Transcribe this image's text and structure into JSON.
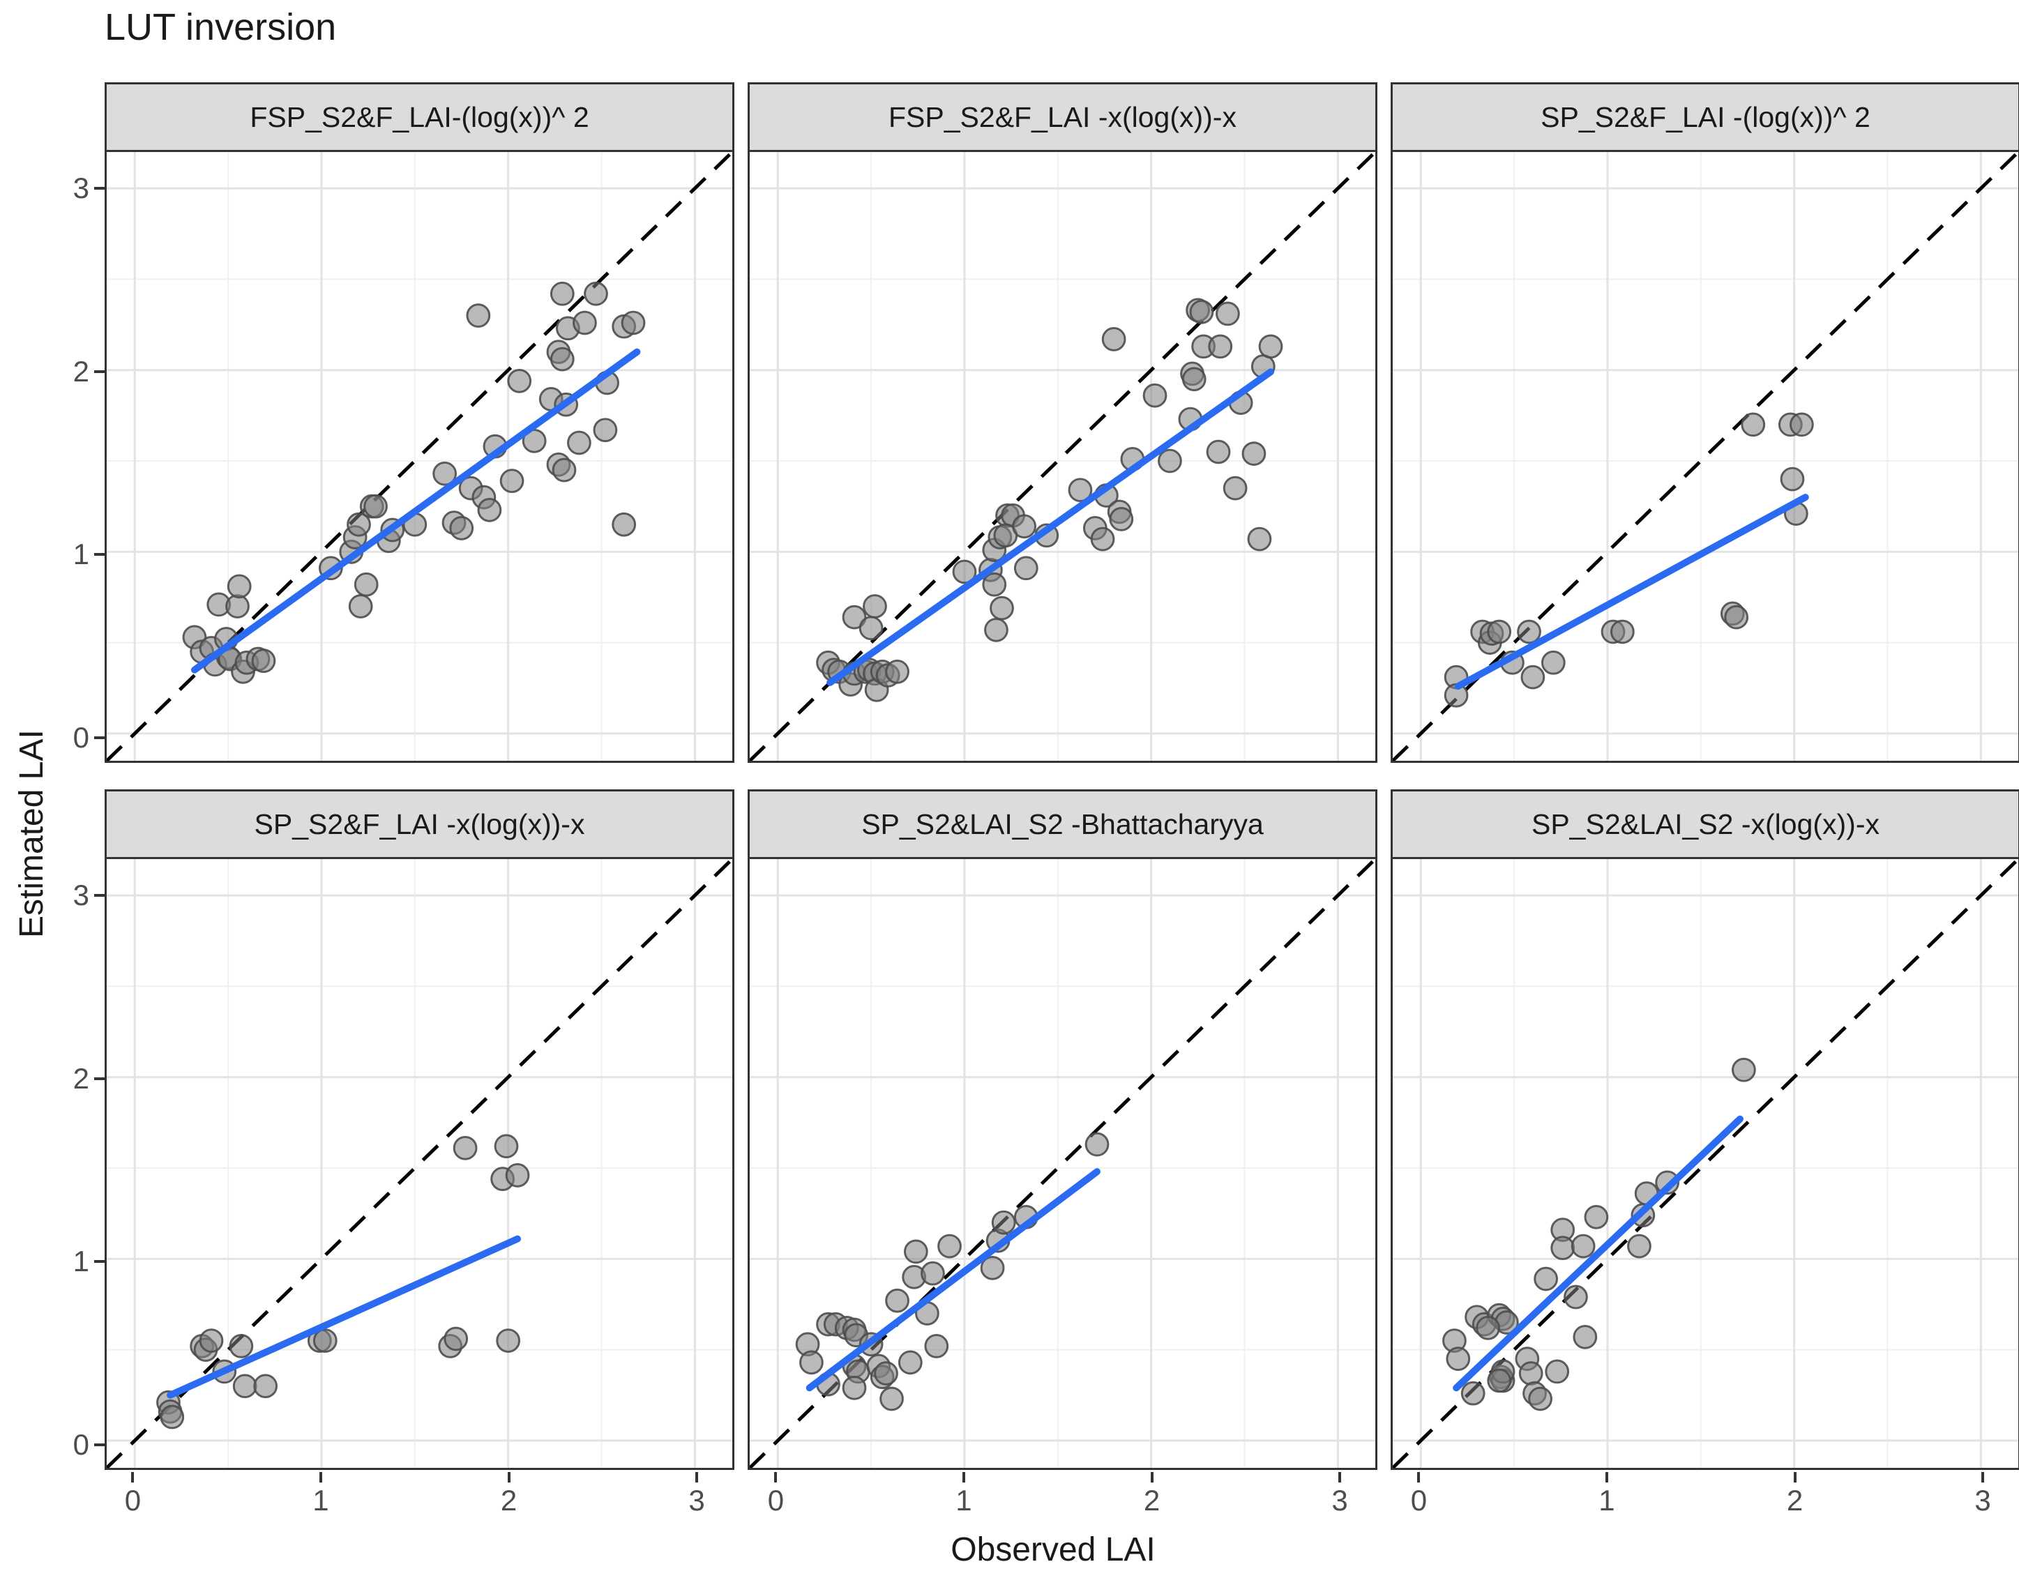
{
  "page": {
    "title": "LUT inversion"
  },
  "axes": {
    "x_title": "Observed LAI",
    "y_title": "Estimated LAI",
    "tick_labels": [
      "0",
      "1",
      "2",
      "3"
    ],
    "tick_values": [
      0,
      1,
      2,
      3
    ],
    "range": [
      -0.15,
      3.2
    ]
  },
  "style": {
    "fit_line_color": "#2a6bf2",
    "identity_line_color": "#000000",
    "point_fill": "#828282",
    "point_stroke": "#4d4d4d",
    "point_opacity": 0.55,
    "grid_major_color": "#e3e3e3",
    "grid_minor_color": "#f0f0f0",
    "strip_bg": "#dcdcdc",
    "panel_border": "#333333",
    "tick_label_color": "#4d4d4d"
  },
  "chart_data": [
    {
      "type": "scatter",
      "title": "FSP_S2&F_LAI-(log(x))^ 2",
      "xlabel": "Observed LAI",
      "ylabel": "Estimated LAI",
      "xlim": [
        -0.15,
        3.2
      ],
      "ylim": [
        -0.15,
        3.2
      ],
      "identity_line": true,
      "fit_line": {
        "x1": 0.32,
        "y1": 0.35,
        "x2": 2.69,
        "y2": 2.1
      },
      "points": [
        [
          0.32,
          0.53
        ],
        [
          0.36,
          0.45
        ],
        [
          0.41,
          0.47
        ],
        [
          0.43,
          0.38
        ],
        [
          0.45,
          0.71
        ],
        [
          0.49,
          0.52
        ],
        [
          0.5,
          0.42
        ],
        [
          0.51,
          0.41
        ],
        [
          0.55,
          0.7
        ],
        [
          0.56,
          0.81
        ],
        [
          0.58,
          0.34
        ],
        [
          0.6,
          0.39
        ],
        [
          0.66,
          0.41
        ],
        [
          0.69,
          0.4
        ],
        [
          1.05,
          0.91
        ],
        [
          1.16,
          1.0
        ],
        [
          1.18,
          1.08
        ],
        [
          1.2,
          1.15
        ],
        [
          1.24,
          0.82
        ],
        [
          1.21,
          0.7
        ],
        [
          1.27,
          1.25
        ],
        [
          1.29,
          1.25
        ],
        [
          1.36,
          1.06
        ],
        [
          1.38,
          1.12
        ],
        [
          1.5,
          1.15
        ],
        [
          1.66,
          1.43
        ],
        [
          1.71,
          1.16
        ],
        [
          1.75,
          1.13
        ],
        [
          1.8,
          1.35
        ],
        [
          1.84,
          2.3
        ],
        [
          1.87,
          1.3
        ],
        [
          1.9,
          1.23
        ],
        [
          1.93,
          1.58
        ],
        [
          2.02,
          1.39
        ],
        [
          2.06,
          1.94
        ],
        [
          2.14,
          1.61
        ],
        [
          2.29,
          2.42
        ],
        [
          2.32,
          2.23
        ],
        [
          2.27,
          2.1
        ],
        [
          2.29,
          2.06
        ],
        [
          2.23,
          1.84
        ],
        [
          2.31,
          1.81
        ],
        [
          2.27,
          1.48
        ],
        [
          2.3,
          1.45
        ],
        [
          2.38,
          1.6
        ],
        [
          2.41,
          2.26
        ],
        [
          2.47,
          2.42
        ],
        [
          2.52,
          1.67
        ],
        [
          2.53,
          1.93
        ],
        [
          2.62,
          2.24
        ],
        [
          2.67,
          2.26
        ],
        [
          2.62,
          1.15
        ]
      ]
    },
    {
      "type": "scatter",
      "title": "FSP_S2&F_LAI -x(log(x))-x",
      "xlabel": "Observed LAI",
      "ylabel": "Estimated LAI",
      "xlim": [
        -0.15,
        3.2
      ],
      "ylim": [
        -0.15,
        3.2
      ],
      "identity_line": true,
      "fit_line": {
        "x1": 0.28,
        "y1": 0.28,
        "x2": 2.64,
        "y2": 1.99
      },
      "points": [
        [
          0.27,
          0.39
        ],
        [
          0.3,
          0.35
        ],
        [
          0.33,
          0.34
        ],
        [
          0.39,
          0.27
        ],
        [
          0.41,
          0.33
        ],
        [
          0.47,
          0.34
        ],
        [
          0.49,
          0.35
        ],
        [
          0.52,
          0.33
        ],
        [
          0.53,
          0.24
        ],
        [
          0.56,
          0.34
        ],
        [
          0.59,
          0.32
        ],
        [
          0.64,
          0.34
        ],
        [
          0.41,
          0.64
        ],
        [
          0.52,
          0.7
        ],
        [
          0.5,
          0.58
        ],
        [
          1.0,
          0.89
        ],
        [
          1.14,
          0.9
        ],
        [
          1.16,
          0.82
        ],
        [
          1.16,
          1.01
        ],
        [
          1.19,
          1.08
        ],
        [
          1.17,
          0.57
        ],
        [
          1.2,
          0.69
        ],
        [
          1.23,
          1.2
        ],
        [
          1.26,
          1.2
        ],
        [
          1.22,
          1.09
        ],
        [
          1.32,
          1.14
        ],
        [
          1.33,
          0.91
        ],
        [
          1.44,
          1.09
        ],
        [
          1.62,
          1.34
        ],
        [
          1.7,
          1.13
        ],
        [
          1.74,
          1.07
        ],
        [
          1.76,
          1.31
        ],
        [
          1.8,
          2.17
        ],
        [
          1.83,
          1.22
        ],
        [
          1.84,
          1.18
        ],
        [
          1.9,
          1.51
        ],
        [
          2.02,
          1.86
        ],
        [
          2.1,
          1.5
        ],
        [
          2.21,
          1.73
        ],
        [
          2.22,
          1.98
        ],
        [
          2.23,
          1.95
        ],
        [
          2.25,
          2.33
        ],
        [
          2.27,
          2.32
        ],
        [
          2.28,
          2.13
        ],
        [
          2.37,
          2.13
        ],
        [
          2.36,
          1.55
        ],
        [
          2.41,
          2.31
        ],
        [
          2.45,
          1.35
        ],
        [
          2.48,
          1.82
        ],
        [
          2.55,
          1.54
        ],
        [
          2.58,
          1.07
        ],
        [
          2.6,
          2.02
        ],
        [
          2.64,
          2.13
        ]
      ]
    },
    {
      "type": "scatter",
      "title": "SP_S2&F_LAI -(log(x))^ 2",
      "xlabel": "Observed LAI",
      "ylabel": "Estimated LAI",
      "xlim": [
        -0.15,
        3.2
      ],
      "ylim": [
        -0.15,
        3.2
      ],
      "identity_line": true,
      "fit_line": {
        "x1": 0.2,
        "y1": 0.26,
        "x2": 2.06,
        "y2": 1.3
      },
      "points": [
        [
          0.19,
          0.31
        ],
        [
          0.19,
          0.21
        ],
        [
          0.33,
          0.56
        ],
        [
          0.37,
          0.5
        ],
        [
          0.38,
          0.55
        ],
        [
          0.42,
          0.56
        ],
        [
          0.49,
          0.39
        ],
        [
          0.58,
          0.56
        ],
        [
          0.6,
          0.31
        ],
        [
          0.71,
          0.39
        ],
        [
          1.03,
          0.56
        ],
        [
          1.08,
          0.56
        ],
        [
          1.67,
          0.66
        ],
        [
          1.69,
          0.64
        ],
        [
          1.78,
          1.7
        ],
        [
          1.98,
          1.7
        ],
        [
          2.04,
          1.7
        ],
        [
          1.99,
          1.4
        ],
        [
          2.01,
          1.21
        ]
      ]
    },
    {
      "type": "scatter",
      "title": "SP_S2&F_LAI -x(log(x))-x",
      "xlabel": "Observed LAI",
      "ylabel": "Estimated LAI",
      "xlim": [
        -0.15,
        3.2
      ],
      "ylim": [
        -0.15,
        3.2
      ],
      "identity_line": true,
      "fit_line": {
        "x1": 0.19,
        "y1": 0.25,
        "x2": 2.05,
        "y2": 1.11
      },
      "points": [
        [
          0.18,
          0.21
        ],
        [
          0.19,
          0.16
        ],
        [
          0.2,
          0.13
        ],
        [
          0.36,
          0.52
        ],
        [
          0.38,
          0.5
        ],
        [
          0.41,
          0.55
        ],
        [
          0.48,
          0.38
        ],
        [
          0.57,
          0.52
        ],
        [
          0.59,
          0.3
        ],
        [
          0.7,
          0.3
        ],
        [
          0.99,
          0.55
        ],
        [
          1.02,
          0.55
        ],
        [
          1.69,
          0.52
        ],
        [
          1.72,
          0.56
        ],
        [
          2.0,
          0.55
        ],
        [
          1.77,
          1.61
        ],
        [
          1.97,
          1.44
        ],
        [
          1.99,
          1.62
        ],
        [
          2.05,
          1.46
        ]
      ]
    },
    {
      "type": "scatter",
      "title": "SP_S2&LAI_S2 -Bhattacharyya",
      "xlabel": "Observed LAI",
      "ylabel": "Estimated LAI",
      "xlim": [
        -0.15,
        3.2
      ],
      "ylim": [
        -0.15,
        3.2
      ],
      "identity_line": true,
      "fit_line": {
        "x1": 0.17,
        "y1": 0.29,
        "x2": 1.71,
        "y2": 1.48
      },
      "points": [
        [
          0.16,
          0.53
        ],
        [
          0.18,
          0.43
        ],
        [
          0.27,
          0.64
        ],
        [
          0.31,
          0.64
        ],
        [
          0.37,
          0.62
        ],
        [
          0.41,
          0.61
        ],
        [
          0.42,
          0.58
        ],
        [
          0.41,
          0.41
        ],
        [
          0.43,
          0.38
        ],
        [
          0.27,
          0.31
        ],
        [
          0.41,
          0.29
        ],
        [
          0.5,
          0.53
        ],
        [
          0.54,
          0.41
        ],
        [
          0.56,
          0.35
        ],
        [
          0.58,
          0.37
        ],
        [
          0.61,
          0.23
        ],
        [
          0.71,
          0.43
        ],
        [
          0.64,
          0.77
        ],
        [
          0.74,
          1.04
        ],
        [
          0.92,
          1.07
        ],
        [
          0.73,
          0.9
        ],
        [
          0.83,
          0.92
        ],
        [
          0.8,
          0.7
        ],
        [
          0.85,
          0.52
        ],
        [
          1.15,
          0.95
        ],
        [
          1.18,
          1.1
        ],
        [
          1.21,
          1.2
        ],
        [
          1.33,
          1.23
        ],
        [
          1.71,
          1.63
        ]
      ]
    },
    {
      "type": "scatter",
      "title": "SP_S2&LAI_S2 -x(log(x))-x",
      "xlabel": "Observed LAI",
      "ylabel": "Estimated LAI",
      "xlim": [
        -0.15,
        3.2
      ],
      "ylim": [
        -0.15,
        3.2
      ],
      "identity_line": true,
      "fit_line": {
        "x1": 0.19,
        "y1": 0.29,
        "x2": 1.71,
        "y2": 1.77
      },
      "points": [
        [
          0.18,
          0.55
        ],
        [
          0.2,
          0.45
        ],
        [
          0.28,
          0.26
        ],
        [
          0.3,
          0.68
        ],
        [
          0.34,
          0.64
        ],
        [
          0.42,
          0.69
        ],
        [
          0.44,
          0.67
        ],
        [
          0.46,
          0.65
        ],
        [
          0.36,
          0.62
        ],
        [
          0.43,
          0.35
        ],
        [
          0.44,
          0.33
        ],
        [
          0.44,
          0.38
        ],
        [
          0.42,
          0.33
        ],
        [
          0.57,
          0.45
        ],
        [
          0.59,
          0.37
        ],
        [
          0.61,
          0.26
        ],
        [
          0.64,
          0.23
        ],
        [
          0.73,
          0.38
        ],
        [
          0.67,
          0.89
        ],
        [
          0.76,
          1.16
        ],
        [
          0.76,
          1.06
        ],
        [
          0.87,
          1.07
        ],
        [
          0.83,
          0.79
        ],
        [
          0.88,
          0.57
        ],
        [
          0.94,
          1.23
        ],
        [
          1.17,
          1.07
        ],
        [
          1.19,
          1.24
        ],
        [
          1.21,
          1.36
        ],
        [
          1.32,
          1.42
        ],
        [
          1.73,
          2.04
        ]
      ]
    }
  ]
}
